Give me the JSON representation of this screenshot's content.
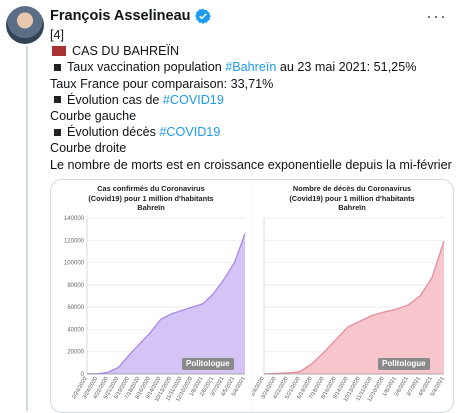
{
  "tweet": {
    "author": "François Asselineau",
    "more": "···",
    "lines": {
      "l1": "[4]",
      "l2": "CAS DU BAHREÏN",
      "l3a": "Taux vaccination population ",
      "l3b": "#Bahreïn",
      "l3c": " au 23 mai 2021: 51,25%",
      "l4": "Taux France pour comparaison: 33,71%",
      "l5a": "Évolution cas de ",
      "l5b": "#COVID19",
      "l6": "Courbe gauche",
      "l7a": "Évolution décès ",
      "l7b": "#COVID19",
      "l8": "Courbe droite",
      "l9": "Le nombre de morts est en croissance exponentielle depuis la mi-février"
    }
  },
  "colors": {
    "link": "#1d9bf0",
    "cases_fill": "#d3c4f5",
    "cases_line": "#a58be6",
    "deaths_fill": "#f7c5cc",
    "deaths_line": "#e78c9b"
  },
  "chart_data": [
    {
      "type": "area",
      "title": "Cas confirmés du Coronavirus (Covid19) pour 1 million d'habitants Bahreïn",
      "watermark": "Politologue",
      "yticks": [
        "140000",
        "120000",
        "100000",
        "80000",
        "60000",
        "40000",
        "20000",
        "0"
      ],
      "ylim": [
        0,
        140000
      ],
      "x": [
        "2/24/2020",
        "3/24/2020",
        "4/22/2020",
        "5/21/2020",
        "6/19/2020",
        "7/18/2020",
        "8/16/2020",
        "9/14/2020",
        "10/13/2020",
        "11/11/2020",
        "12/10/2020",
        "1/8/2021",
        "2/6/2021",
        "3/7/2021",
        "4/5/2021",
        "5/4/2021"
      ],
      "values": [
        0,
        200,
        1500,
        6000,
        17000,
        27000,
        37000,
        49000,
        54000,
        57000,
        60000,
        63000,
        72000,
        85000,
        100000,
        126000
      ]
    },
    {
      "type": "area",
      "title": "Nombre de décès du Coronavirus (Covid19) pour 1 million d'habitants Bahreïn",
      "watermark": "Politologue",
      "yticks": [],
      "x": [
        "2/4/2020",
        "3/24/2020",
        "4/22/2020",
        "5/21/2020",
        "6/19/2020",
        "7/18/2020",
        "8/16/2020",
        "9/14/2020",
        "10/13/2020",
        "11/11/2020",
        "12/10/2020",
        "1/8/2021",
        "2/6/2021",
        "3/7/2021",
        "4/5/2021",
        "5/4/2021"
      ],
      "values": [
        0,
        2,
        5,
        10,
        45,
        95,
        150,
        205,
        230,
        255,
        270,
        282,
        300,
        340,
        420,
        580
      ],
      "ylim": [
        0,
        680
      ]
    }
  ]
}
